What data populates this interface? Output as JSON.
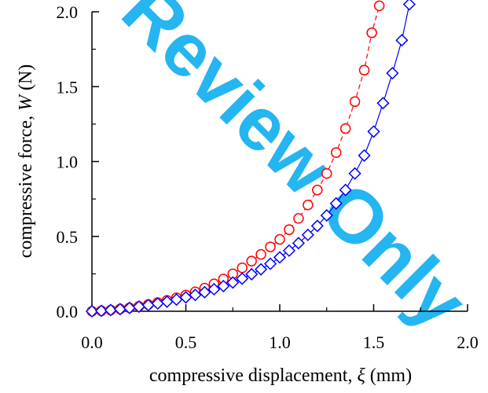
{
  "chart_data": {
    "type": "scatter",
    "xlabel": {
      "prefix": "compressive displacement, ",
      "symbol": "ξ",
      "unit": " (mm)"
    },
    "ylabel": {
      "prefix": "compressive force, ",
      "symbol": "W",
      "unit": " (N)"
    },
    "xlim": [
      0,
      2
    ],
    "ylim": [
      0,
      2
    ],
    "x_ticks": [
      "0.0",
      "0.5",
      "1.0",
      "1.5",
      "2.0"
    ],
    "y_ticks": [
      "0.0",
      "0.5",
      "1.0",
      "1.5",
      "2.0"
    ],
    "grid": false,
    "legend": "none",
    "series": [
      {
        "marker": "circle",
        "line": "dashed",
        "color": "#ff0000",
        "x": [
          0.0,
          0.05,
          0.1,
          0.15,
          0.2,
          0.25,
          0.3,
          0.35,
          0.4,
          0.45,
          0.5,
          0.55,
          0.6,
          0.65,
          0.7,
          0.75,
          0.8,
          0.85,
          0.9,
          0.95,
          1.0,
          1.05,
          1.1,
          1.15,
          1.2,
          1.25,
          1.3,
          1.35,
          1.4,
          1.45,
          1.49,
          1.53
        ],
        "y": [
          0.0,
          0.003,
          0.008,
          0.015,
          0.023,
          0.033,
          0.045,
          0.058,
          0.073,
          0.09,
          0.108,
          0.13,
          0.155,
          0.183,
          0.215,
          0.25,
          0.29,
          0.335,
          0.38,
          0.43,
          0.48,
          0.545,
          0.62,
          0.71,
          0.81,
          0.92,
          1.06,
          1.22,
          1.4,
          1.61,
          1.86,
          2.04
        ]
      },
      {
        "marker": "diamond",
        "line": "solid",
        "color": "#0000ff",
        "x": [
          0.0,
          0.05,
          0.1,
          0.15,
          0.2,
          0.25,
          0.3,
          0.35,
          0.4,
          0.45,
          0.5,
          0.55,
          0.6,
          0.65,
          0.7,
          0.75,
          0.8,
          0.85,
          0.9,
          0.95,
          1.0,
          1.05,
          1.1,
          1.15,
          1.2,
          1.25,
          1.3,
          1.35,
          1.4,
          1.45,
          1.5,
          1.55,
          1.6,
          1.65,
          1.69
        ],
        "y": [
          0.0,
          0.003,
          0.008,
          0.014,
          0.022,
          0.031,
          0.041,
          0.052,
          0.064,
          0.078,
          0.093,
          0.109,
          0.127,
          0.147,
          0.168,
          0.192,
          0.218,
          0.247,
          0.28,
          0.317,
          0.36,
          0.405,
          0.455,
          0.51,
          0.57,
          0.64,
          0.72,
          0.81,
          0.92,
          1.04,
          1.2,
          1.39,
          1.59,
          1.81,
          2.05
        ]
      }
    ]
  },
  "watermark": {
    "text": "Review Only",
    "color": "#00a9ee"
  }
}
